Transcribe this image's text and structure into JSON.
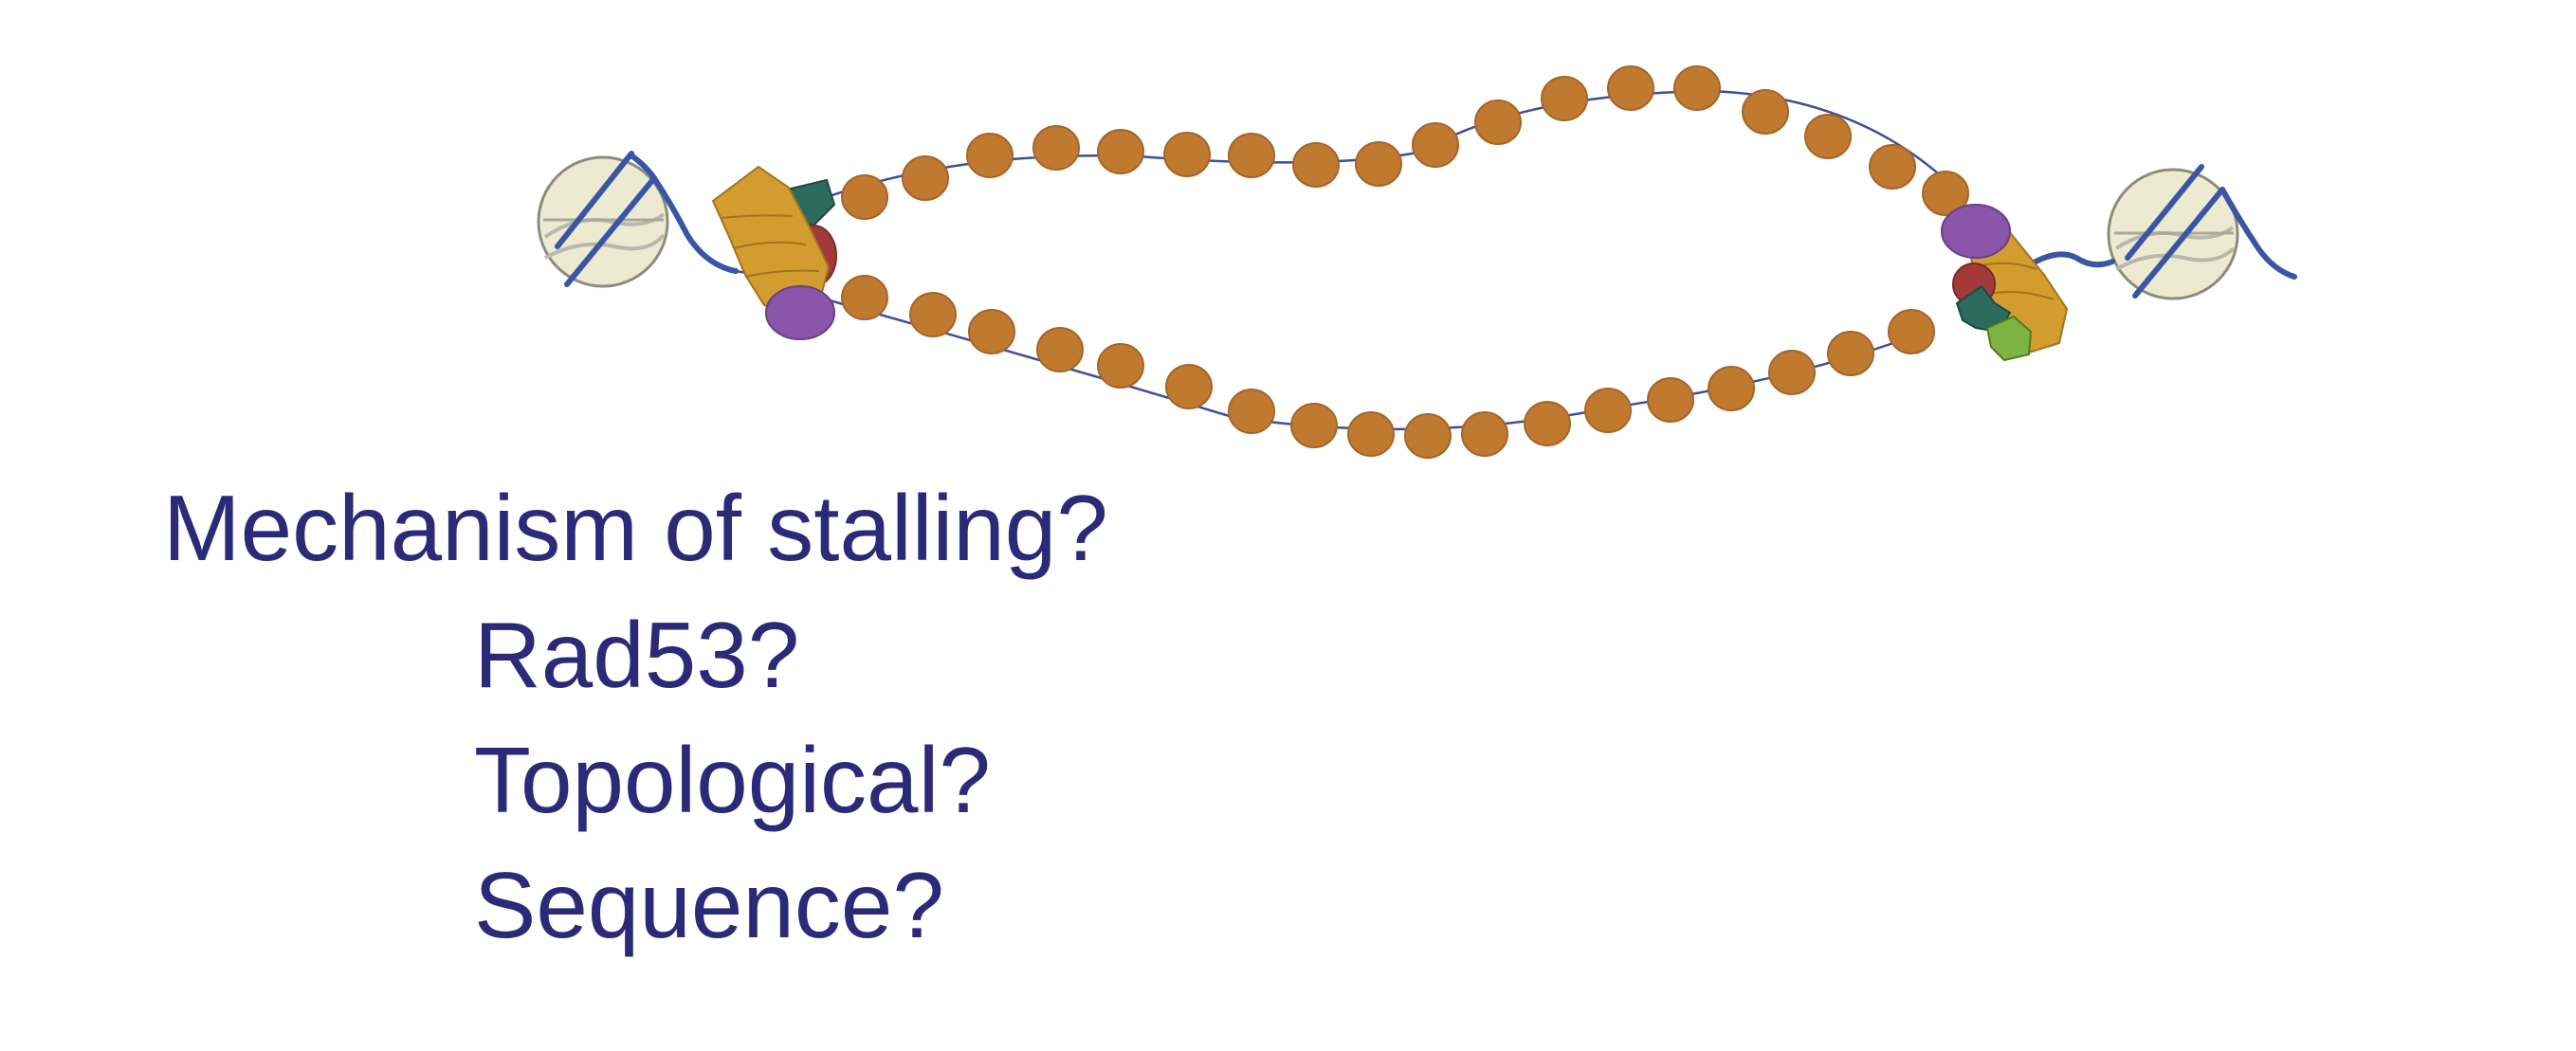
{
  "questions": {
    "title": "Mechanism of stalling?",
    "items": [
      "Rad53?",
      "Topological?",
      "Sequence?"
    ]
  },
  "colors": {
    "text": "#2a2a78",
    "dna": "#3a55a5",
    "nucleosome": "#c07a30",
    "nucleosome_edge": "#a5652a",
    "linker": "#3c4f9a",
    "replisome_gold": "#d29c2e",
    "replisome_gold_edge": "#a0751c",
    "purple": "#8a55a8",
    "maroon": "#a33a3a",
    "teal": "#2c6a5e",
    "green": "#7cb342",
    "origin_fill": "#ecebd2",
    "origin_edge": "#8c8c7c"
  },
  "icons": {
    "left_replisome": "replisome-left-icon",
    "right_replisome": "replisome-right-icon",
    "origin": "nucleosome-origin-icon"
  }
}
